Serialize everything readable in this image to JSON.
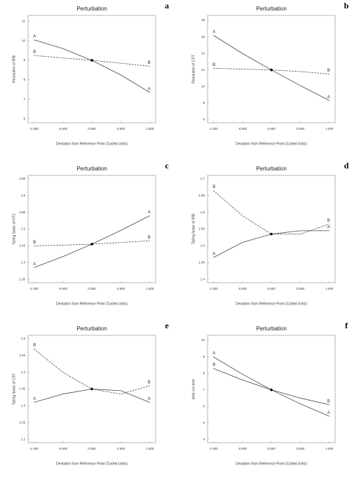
{
  "chart_data": [
    {
      "type": "line",
      "panel": "a",
      "title": "Perturbation",
      "x_label": "Deviation from Reference Point (Coded Units)",
      "y_label": "Resolution of IRB",
      "x": [
        -1,
        -0.5,
        0,
        0.5,
        1
      ],
      "series": [
        {
          "name": "A",
          "color": "#444444",
          "line_style": "solid",
          "values": [
            10.05,
            9.6,
            9.0,
            8.25,
            7.35
          ]
        },
        {
          "name": "B",
          "color": "#444444",
          "line_style": "dashed",
          "values": [
            9.25,
            9.12,
            9.0,
            8.85,
            8.7
          ]
        }
      ],
      "xlim": [
        -1.1,
        1.1
      ],
      "xticks": [
        {
          "value": -1,
          "label": "-1.000"
        },
        {
          "value": -0.5,
          "label": "-0.500"
        },
        {
          "value": 0,
          "label": "0.000"
        },
        {
          "value": 0.5,
          "label": "0.500"
        },
        {
          "value": 1,
          "label": "1.000"
        }
      ],
      "ylim": [
        5.8,
        11.3
      ],
      "yticks": [
        6,
        7,
        8,
        9,
        10,
        11
      ]
    },
    {
      "type": "line",
      "panel": "b",
      "title": "Perturbation",
      "x_label": "Deviation from Reference Point (Coded Units)",
      "y_label": "Resolution of CST",
      "x": [
        -1,
        -0.5,
        0,
        0.5,
        1
      ],
      "series": [
        {
          "name": "A",
          "color": "#444444",
          "line_style": "solid",
          "values": [
            16.2,
            14.0,
            12.0,
            10.1,
            8.3
          ]
        },
        {
          "name": "B",
          "color": "#444444",
          "line_style": "dashed",
          "values": [
            12.2,
            12.1,
            12.0,
            11.8,
            11.5
          ]
        }
      ],
      "xlim": [
        -1.1,
        1.1
      ],
      "xticks": [
        {
          "value": -1,
          "label": "-1.000"
        },
        {
          "value": -0.5,
          "label": "-0.500"
        },
        {
          "value": 0,
          "label": "0.000"
        },
        {
          "value": 0.5,
          "label": "0.500"
        },
        {
          "value": 1,
          "label": "1.000"
        }
      ],
      "ylim": [
        5.6,
        18.6
      ],
      "yticks": [
        6,
        8,
        10,
        12,
        14,
        16,
        18
      ]
    },
    {
      "type": "line",
      "panel": "c",
      "title": "Perturbation",
      "x_label": "Deviation from Reference Point (Coded Units)",
      "y_label": "Tailing factor of HTZ",
      "x": [
        -1,
        -0.5,
        0,
        0.5,
        1
      ],
      "series": [
        {
          "name": "A",
          "color": "#444444",
          "line_style": "solid",
          "values": [
            1.385,
            1.418,
            1.455,
            1.496,
            1.54
          ]
        },
        {
          "name": "B",
          "color": "#444444",
          "line_style": "dashed",
          "values": [
            1.45,
            1.452,
            1.455,
            1.46,
            1.465
          ]
        }
      ],
      "xlim": [
        -1.1,
        1.1
      ],
      "xticks": [
        {
          "value": -1,
          "label": "-1.000"
        },
        {
          "value": -0.5,
          "label": "-0.500"
        },
        {
          "value": 0,
          "label": "0.000"
        },
        {
          "value": 0.5,
          "label": "0.500"
        },
        {
          "value": 1,
          "label": "1.000"
        }
      ],
      "ylim": [
        1.34,
        1.66
      ],
      "yticks": [
        1.35,
        1.4,
        1.45,
        1.5,
        1.55,
        1.6,
        1.65
      ]
    },
    {
      "type": "line",
      "panel": "d",
      "title": "Perturbation",
      "x_label": "Deviation from Reference Point (Coded Units)",
      "y_label": "Tailing factor of IRB",
      "x": [
        -1,
        -0.5,
        0,
        0.5,
        1
      ],
      "series": [
        {
          "name": "A",
          "color": "#444444",
          "line_style": "solid",
          "values": [
            1.465,
            1.51,
            1.535,
            1.545,
            1.545
          ]
        },
        {
          "name": "B",
          "color": "#444444",
          "line_style": "dashed",
          "values": [
            1.665,
            1.59,
            1.535,
            1.535,
            1.565
          ]
        }
      ],
      "xlim": [
        -1.1,
        1.1
      ],
      "xticks": [
        {
          "value": -1,
          "label": "-1.000"
        },
        {
          "value": -0.5,
          "label": "-0.500"
        },
        {
          "value": 0,
          "label": "0.000"
        },
        {
          "value": 0.5,
          "label": "0.500"
        },
        {
          "value": 1,
          "label": "1.000"
        }
      ],
      "ylim": [
        1.39,
        1.71
      ],
      "yticks": [
        1.4,
        1.45,
        1.5,
        1.55,
        1.6,
        1.65,
        1.7
      ]
    },
    {
      "type": "line",
      "panel": "e",
      "title": "Perturbation",
      "x_label": "Deviation from Reference Point (Coded Units)",
      "y_label": "Tailing factor of CST",
      "x": [
        -1,
        -0.5,
        0,
        0.5,
        1
      ],
      "series": [
        {
          "name": "A",
          "color": "#444444",
          "line_style": "solid",
          "values": [
            1.31,
            1.335,
            1.35,
            1.345,
            1.31
          ]
        },
        {
          "name": "B",
          "color": "#444444",
          "line_style": "dashed",
          "values": [
            1.47,
            1.4,
            1.35,
            1.335,
            1.36
          ]
        }
      ],
      "xlim": [
        -1.1,
        1.1
      ],
      "xticks": [
        {
          "value": -1,
          "label": "-1.000"
        },
        {
          "value": -0.5,
          "label": "-0.500"
        },
        {
          "value": 0,
          "label": "0.000"
        },
        {
          "value": 0.5,
          "label": "0.500"
        },
        {
          "value": 1,
          "label": "1.000"
        }
      ],
      "ylim": [
        1.19,
        1.51
      ],
      "yticks": [
        1.2,
        1.25,
        1.3,
        1.35,
        1.4,
        1.45,
        1.5
      ]
    },
    {
      "type": "line",
      "panel": "f",
      "title": "Perturbation",
      "x_label": "Deviation from Reference Point (Coded Units)",
      "y_label": "total run time",
      "x": [
        -1,
        -0.5,
        0,
        0.5,
        1
      ],
      "series": [
        {
          "name": "A",
          "color": "#444444",
          "line_style": "solid",
          "values": [
            9.0,
            7.95,
            7.0,
            6.15,
            5.4
          ]
        },
        {
          "name": "B",
          "color": "#444444",
          "line_style": "solid",
          "values": [
            8.3,
            7.6,
            7.0,
            6.5,
            6.1
          ]
        }
      ],
      "xlim": [
        -1.1,
        1.1
      ],
      "xticks": [
        {
          "value": -1,
          "label": "-1.000"
        },
        {
          "value": -0.5,
          "label": "-0.500"
        },
        {
          "value": 0,
          "label": "0.000"
        },
        {
          "value": 0.5,
          "label": "0.500"
        },
        {
          "value": 1,
          "label": "1.000"
        }
      ],
      "ylim": [
        3.8,
        10.3
      ],
      "yticks": [
        4,
        5,
        6,
        7,
        8,
        9,
        10
      ]
    }
  ]
}
